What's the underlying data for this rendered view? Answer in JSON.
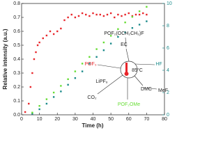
{
  "chart_data": {
    "type": "scatter",
    "x_label": "Time (h)",
    "y_label": "Relative intensity (a.u.)",
    "xlim": [
      0,
      80
    ],
    "xticks": [
      0,
      10,
      20,
      30,
      40,
      50,
      60,
      70,
      80
    ],
    "ylim": [
      0,
      0.8
    ],
    "yticks": [
      {
        "value": 0,
        "label": "0.0"
      },
      0.1,
      0.2,
      0.3,
      0.4,
      0.5,
      0.6,
      0.7,
      0.8
    ],
    "y2lim": [
      0,
      10
    ],
    "y2ticks": [
      0,
      2,
      4,
      6,
      8,
      10
    ],
    "y2_color": "#1a8a8a",
    "series": [
      {
        "color": "#e8252a",
        "x": [
          2,
          4,
          5,
          6,
          7,
          8,
          9,
          10,
          12,
          14,
          16,
          18,
          20,
          22,
          24,
          26,
          28,
          30,
          32,
          34,
          36,
          38,
          40,
          42,
          44,
          46,
          48,
          50,
          52,
          54,
          56,
          58,
          60,
          62,
          64,
          66,
          68,
          70
        ],
        "values": [
          0.02,
          0.08,
          0.2,
          0.3,
          0.4,
          0.45,
          0.5,
          0.52,
          0.55,
          0.57,
          0.6,
          0.58,
          0.6,
          0.62,
          0.68,
          0.7,
          0.72,
          0.7,
          0.71,
          0.73,
          0.72,
          0.71,
          0.73,
          0.72,
          0.72,
          0.71,
          0.72,
          0.73,
          0.7,
          0.72,
          0.71,
          0.72,
          0.73,
          0.71,
          0.72,
          0.72,
          0.73,
          0.72
        ]
      },
      {
        "color": "#1a8a8a",
        "axis": "y2",
        "x": [
          6,
          10,
          14,
          18,
          22,
          26,
          30,
          34,
          38,
          42,
          46,
          50,
          54,
          58,
          62,
          66,
          70
        ],
        "values": [
          0.1,
          0.5,
          1.0,
          1.6,
          2.1,
          2.7,
          3.3,
          3.9,
          4.6,
          5.2,
          5.8,
          6.4,
          7.0,
          7.4,
          7.8,
          8.1,
          8.4
        ]
      },
      {
        "color": "#66dd33",
        "axis": "y2",
        "x": [
          6,
          10,
          14,
          18,
          22,
          26,
          30,
          34,
          38,
          42,
          46,
          50,
          54,
          58,
          62,
          66,
          70
        ],
        "values": [
          0.2,
          0.8,
          1.4,
          2.0,
          2.6,
          3.2,
          3.9,
          4.6,
          5.2,
          5.9,
          6.5,
          7.1,
          7.7,
          8.3,
          8.8,
          9.3,
          9.7
        ]
      }
    ],
    "annotations": [
      {
        "text": "EC",
        "color": "#222"
      },
      {
        "text": "POF₂(OCH₂CH₃)F",
        "color": "#222"
      },
      {
        "text": "HF",
        "color": "#1a8a8a"
      },
      {
        "text": "85°C",
        "color": "#222"
      },
      {
        "text": "DMC",
        "color": "#222"
      },
      {
        "text": "MeF",
        "color": "#222"
      },
      {
        "text": "POF₂OMe",
        "color": "#66dd33"
      },
      {
        "text": "LiPF₆",
        "color": "#222"
      },
      {
        "text": "CO₂",
        "color": "#222"
      },
      {
        "text": "POF₃",
        "color": "#e8252a"
      }
    ]
  }
}
